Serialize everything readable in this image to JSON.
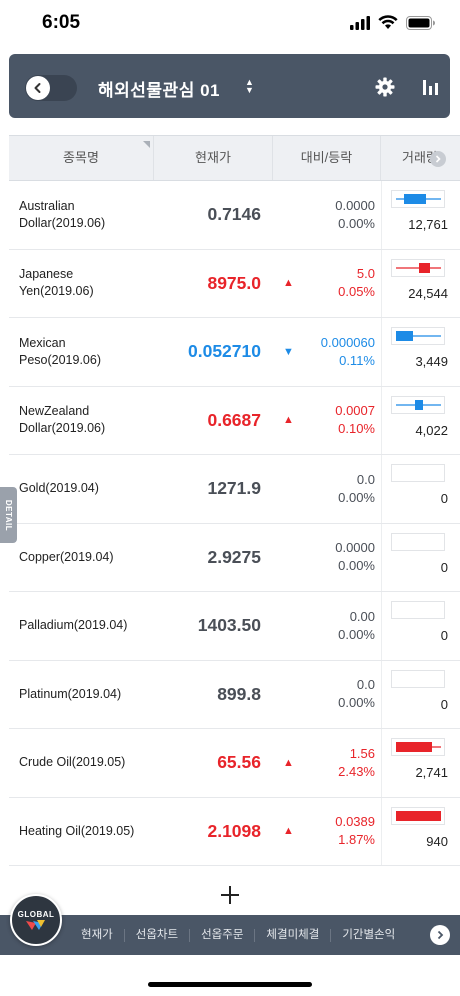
{
  "status_bar": {
    "time": "6:05"
  },
  "header": {
    "title": "해외선물관심 01",
    "icons": [
      "back-arrow-icon",
      "sort-arrows-icon",
      "gear-icon",
      "bar-chart-icon"
    ]
  },
  "table": {
    "columns": {
      "name": "종목명",
      "price": "현재가",
      "change": "대비/등락",
      "volume": "거래량"
    },
    "rows": [
      {
        "name_line1": "Australian",
        "name_line2": "Dollar(2019.06)",
        "price": "0.7146",
        "arrow": "",
        "diff": "0.0000",
        "rate": "0.00%",
        "volume": "12,761",
        "dir": "neutral"
      },
      {
        "name_line1": "Japanese",
        "name_line2": "Yen(2019.06)",
        "price": "8975.0",
        "arrow": "▲",
        "diff": "5.0",
        "rate": "0.05%",
        "volume": "24,544",
        "dir": "up"
      },
      {
        "name_line1": "Mexican",
        "name_line2": "Peso(2019.06)",
        "price": "0.052710",
        "arrow": "▼",
        "diff": "0.000060",
        "rate": "0.11%",
        "volume": "3,449",
        "dir": "down"
      },
      {
        "name_line1": "NewZealand",
        "name_line2": "Dollar(2019.06)",
        "price": "0.6687",
        "arrow": "▲",
        "diff": "0.0007",
        "rate": "0.10%",
        "volume": "4,022",
        "dir": "up"
      },
      {
        "name_line1": "Gold(2019.04)",
        "name_line2": "",
        "price": "1271.9",
        "arrow": "",
        "diff": "0.0",
        "rate": "0.00%",
        "volume": "0",
        "dir": "neutral"
      },
      {
        "name_line1": "Copper(2019.04)",
        "name_line2": "",
        "price": "2.9275",
        "arrow": "",
        "diff": "0.0000",
        "rate": "0.00%",
        "volume": "0",
        "dir": "neutral"
      },
      {
        "name_line1": "Palladium(2019.04)",
        "name_line2": "",
        "price": "1403.50",
        "arrow": "",
        "diff": "0.00",
        "rate": "0.00%",
        "volume": "0",
        "dir": "neutral"
      },
      {
        "name_line1": "Platinum(2019.04)",
        "name_line2": "",
        "price": "899.8",
        "arrow": "",
        "diff": "0.0",
        "rate": "0.00%",
        "volume": "0",
        "dir": "neutral"
      },
      {
        "name_line1": "Crude Oil(2019.05)",
        "name_line2": "",
        "price": "65.56",
        "arrow": "▲",
        "diff": "1.56",
        "rate": "2.43%",
        "volume": "2,741",
        "dir": "up"
      },
      {
        "name_line1": "Heating Oil(2019.05)",
        "name_line2": "",
        "price": "2.1098",
        "arrow": "▲",
        "diff": "0.0389",
        "rate": "1.87%",
        "volume": "940",
        "dir": "up"
      }
    ]
  },
  "add_button": "+",
  "detail_tab": "DETAIL",
  "global_badge": "GLOBAL",
  "bottom_nav": {
    "items": [
      "현재가",
      "선옵차트",
      "선옵주문",
      "체결미체결",
      "기간별손익"
    ]
  },
  "colors": {
    "up": "#e8242a",
    "down": "#1d8be6",
    "neutral": "#4a4f57",
    "header_bg": "#4a5666"
  }
}
